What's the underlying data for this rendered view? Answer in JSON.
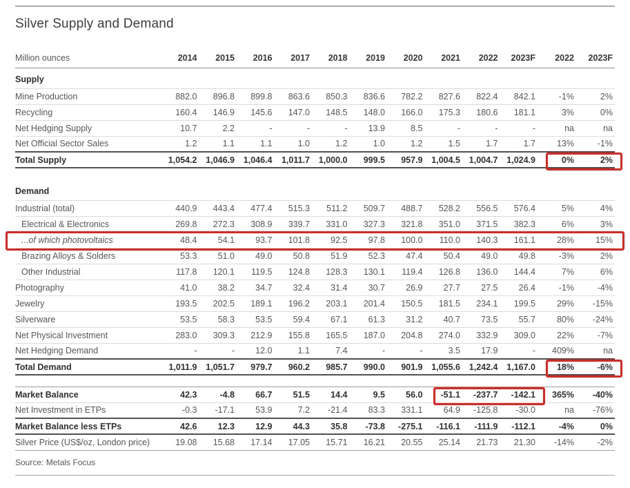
{
  "title": "Silver Supply and Demand",
  "unit_label": "Million ounces",
  "columns": [
    "2014",
    "2015",
    "2016",
    "2017",
    "2018",
    "2019",
    "2020",
    "2021",
    "2022",
    "2023F",
    "2022",
    "2023F"
  ],
  "sections": [
    {
      "heading": "Supply",
      "rows": [
        {
          "label": "Mine Production",
          "style": "plain",
          "values": [
            "882.0",
            "896.8",
            "899.8",
            "863.6",
            "850.3",
            "836.6",
            "782.2",
            "827.6",
            "822.4",
            "842.1",
            "-1%",
            "2%"
          ]
        },
        {
          "label": "Recycling",
          "style": "plain",
          "values": [
            "160.4",
            "146.9",
            "145.6",
            "147.0",
            "148.5",
            "148.0",
            "166.0",
            "175.3",
            "180.6",
            "181.1",
            "3%",
            "0%"
          ]
        },
        {
          "label": "Net Hedging Supply",
          "style": "plain",
          "values": [
            "10.7",
            "2.2",
            "-",
            "-",
            "-",
            "13.9",
            "8.5",
            "-",
            "-",
            "-",
            "na",
            "na"
          ]
        },
        {
          "label": "Net Official Sector Sales",
          "style": "plain",
          "values": [
            "1.2",
            "1.1",
            "1.1",
            "1.0",
            "1.2",
            "1.0",
            "1.2",
            "1.5",
            "1.7",
            "1.7",
            "13%",
            "-1%"
          ]
        },
        {
          "label": "Total Supply",
          "style": "total",
          "values": [
            "1,054.2",
            "1,046.9",
            "1,046.4",
            "1,011.7",
            "1,000.0",
            "999.5",
            "957.9",
            "1,004.5",
            "1,004.7",
            "1,024.9",
            "0%",
            "2%"
          ],
          "highlight": {
            "cols": [
              10,
              11
            ]
          }
        }
      ]
    },
    {
      "heading": "Demand",
      "rows": [
        {
          "label": "Industrial (total)",
          "style": "plain",
          "values": [
            "440.9",
            "443.4",
            "477.4",
            "515.3",
            "511.2",
            "509.7",
            "488.7",
            "528.2",
            "556.5",
            "576.4",
            "5%",
            "4%"
          ]
        },
        {
          "label": "Electrical & Electronics",
          "style": "sub",
          "values": [
            "269.8",
            "272.3",
            "308.9",
            "339.7",
            "331.0",
            "327.3",
            "321.8",
            "351.0",
            "371.5",
            "382.3",
            "6%",
            "3%"
          ]
        },
        {
          "label": "...of which photovoltaics",
          "style": "sub-italic",
          "values": [
            "48.4",
            "54.1",
            "93.7",
            "101.8",
            "92.5",
            "97.8",
            "100.0",
            "110.0",
            "140.3",
            "161.1",
            "28%",
            "15%"
          ],
          "highlight": {
            "row": true
          }
        },
        {
          "label": "Brazing Alloys & Solders",
          "style": "sub",
          "values": [
            "53.3",
            "51.0",
            "49.0",
            "50.8",
            "51.9",
            "52.3",
            "47.4",
            "50.4",
            "49.0",
            "49.8",
            "-3%",
            "2%"
          ]
        },
        {
          "label": "Other Industrial",
          "style": "sub",
          "values": [
            "117.8",
            "120.1",
            "119.5",
            "124.8",
            "128.3",
            "130.1",
            "119.4",
            "126.8",
            "136.0",
            "144.4",
            "7%",
            "6%"
          ]
        },
        {
          "label": "Photography",
          "style": "plain",
          "values": [
            "41.0",
            "38.2",
            "34.7",
            "32.4",
            "31.4",
            "30.7",
            "26.9",
            "27.7",
            "27.5",
            "26.4",
            "-1%",
            "-4%"
          ]
        },
        {
          "label": "Jewelry",
          "style": "plain",
          "values": [
            "193.5",
            "202.5",
            "189.1",
            "196.2",
            "203.1",
            "201.4",
            "150.5",
            "181.5",
            "234.1",
            "199.5",
            "29%",
            "-15%"
          ]
        },
        {
          "label": "Silverware",
          "style": "plain",
          "values": [
            "53.5",
            "58.3",
            "53.5",
            "59.4",
            "67.1",
            "61.3",
            "31.2",
            "40.7",
            "73.5",
            "55.7",
            "80%",
            "-24%"
          ]
        },
        {
          "label": "Net Physical Investment",
          "style": "plain",
          "values": [
            "283.0",
            "309.3",
            "212.9",
            "155.8",
            "165.5",
            "187.0",
            "204.8",
            "274.0",
            "332.9",
            "309.0",
            "22%",
            "-7%"
          ]
        },
        {
          "label": "Net Hedging Demand",
          "style": "plain",
          "values": [
            "-",
            "-",
            "12.0",
            "1.1",
            "7.4",
            "-",
            "-",
            "3.5",
            "17.9",
            "-",
            "409%",
            "na"
          ]
        },
        {
          "label": "Total Demand",
          "style": "total",
          "values": [
            "1,011.9",
            "1,051.7",
            "979.7",
            "960.2",
            "985.7",
            "990.0",
            "901.9",
            "1,055.6",
            "1,242.4",
            "1,167.0",
            "18%",
            "-6%"
          ],
          "highlight": {
            "cols": [
              10,
              11
            ]
          }
        }
      ]
    },
    {
      "heading": null,
      "rows": [
        {
          "label": "Market Balance",
          "style": "bold",
          "top_rule": true,
          "values": [
            "42.3",
            "-4.8",
            "66.7",
            "51.5",
            "14.4",
            "9.5",
            "56.0",
            "-51.1",
            "-237.7",
            "-142.1",
            "365%",
            "-40%"
          ],
          "highlight": {
            "cols": [
              7,
              8,
              9
            ]
          }
        },
        {
          "label": "Net Investment in ETPs",
          "style": "plain",
          "values": [
            "-0.3",
            "-17.1",
            "53.9",
            "7.2",
            "-21.4",
            "83.3",
            "331.1",
            "64.9",
            "-125.8",
            "-30.0",
            "na",
            "-76%"
          ]
        },
        {
          "label": "Market Balance less ETPs",
          "style": "total",
          "values": [
            "42.6",
            "12.3",
            "12.9",
            "44.3",
            "35.8",
            "-73.8",
            "-275.1",
            "-116.1",
            "-111.9",
            "-112.1",
            "-4%",
            "0%"
          ]
        },
        {
          "label": "Silver Price (US$/oz, London price)",
          "style": "plain",
          "bottom_rule": true,
          "values": [
            "19.08",
            "15.68",
            "17.14",
            "17.05",
            "15.71",
            "16.21",
            "20.55",
            "25.14",
            "21.73",
            "21.30",
            "-14%",
            "-2%"
          ]
        }
      ]
    }
  ],
  "source": "Source: Metals Focus",
  "colors": {
    "highlight_box": "#e5231c"
  }
}
